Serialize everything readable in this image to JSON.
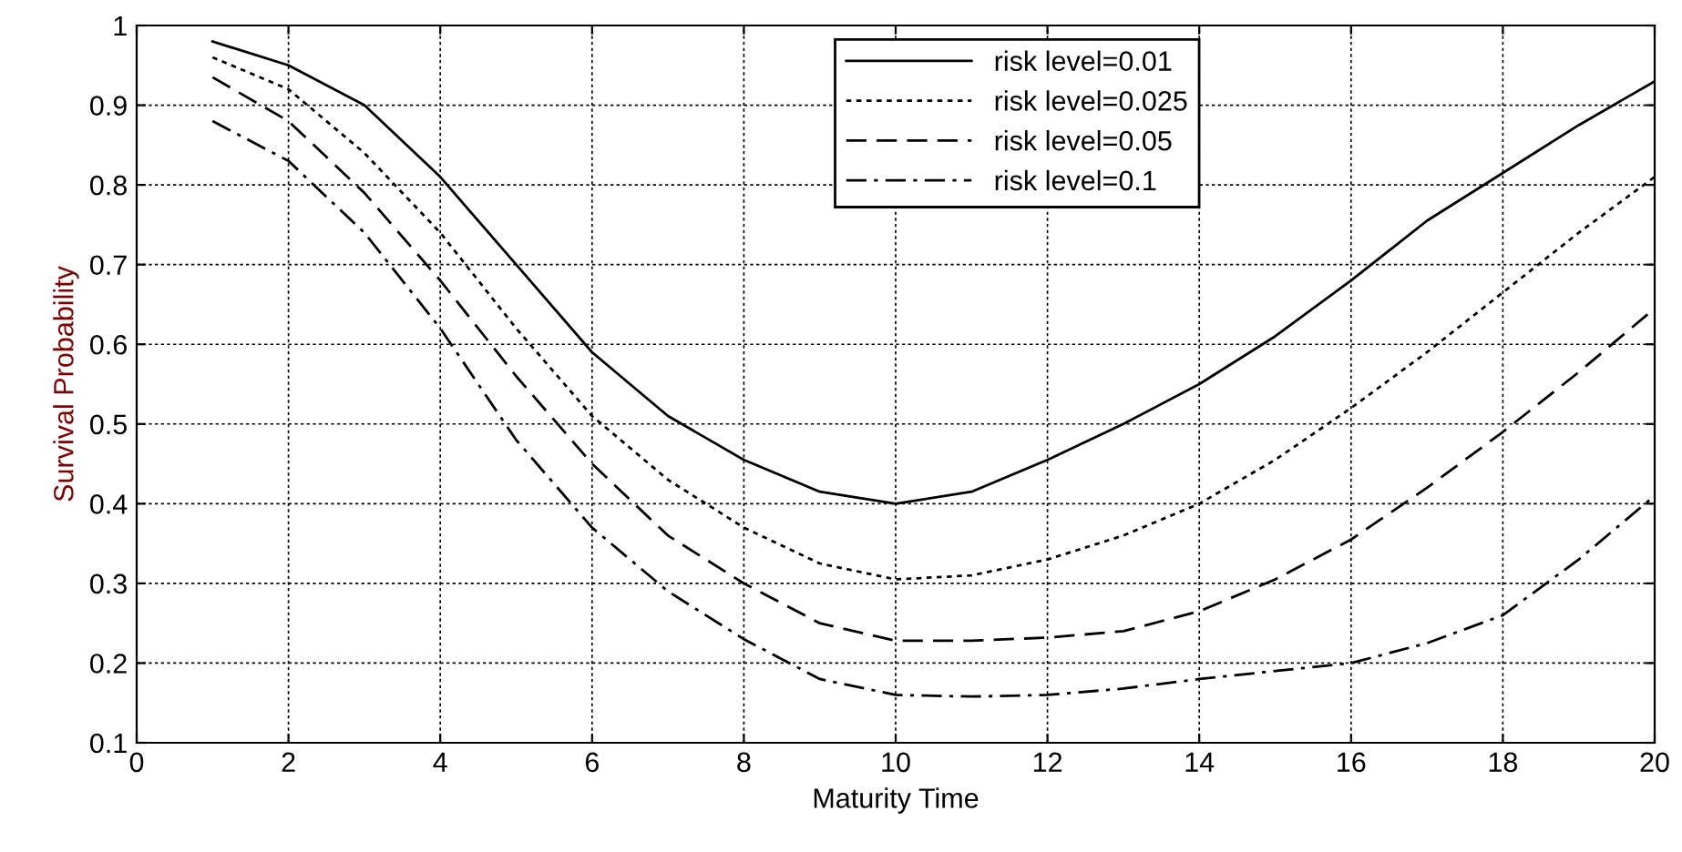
{
  "chart_data": {
    "type": "line",
    "xlabel": "Maturity Time",
    "ylabel": "Survival Probability",
    "x": [
      1,
      2,
      3,
      4,
      5,
      6,
      7,
      8,
      9,
      10,
      11,
      12,
      13,
      14,
      15,
      16,
      17,
      18,
      19,
      20
    ],
    "series": [
      {
        "name": "risk level=0.01",
        "color": "#000000",
        "line_style": "solid",
        "values": [
          0.98,
          0.95,
          0.9,
          0.81,
          0.7,
          0.59,
          0.51,
          0.455,
          0.415,
          0.4,
          0.415,
          0.455,
          0.5,
          0.55,
          0.61,
          0.68,
          0.755,
          0.815,
          0.875,
          0.93
        ]
      },
      {
        "name": "risk level=0.025",
        "color": "#000000",
        "line_style": "dotted",
        "values": [
          0.96,
          0.92,
          0.84,
          0.74,
          0.62,
          0.51,
          0.43,
          0.37,
          0.325,
          0.305,
          0.31,
          0.33,
          0.36,
          0.4,
          0.455,
          0.52,
          0.59,
          0.665,
          0.74,
          0.81
        ]
      },
      {
        "name": "risk level=0.05",
        "color": "#000000",
        "line_style": "dashed",
        "values": [
          0.935,
          0.88,
          0.79,
          0.68,
          0.56,
          0.45,
          0.36,
          0.3,
          0.25,
          0.228,
          0.228,
          0.232,
          0.24,
          0.265,
          0.305,
          0.355,
          0.42,
          0.49,
          0.565,
          0.645
        ]
      },
      {
        "name": "risk level=0.1",
        "color": "#000000",
        "line_style": "dashdot",
        "values": [
          0.88,
          0.83,
          0.74,
          0.62,
          0.48,
          0.37,
          0.29,
          0.23,
          0.18,
          0.16,
          0.158,
          0.16,
          0.168,
          0.18,
          0.19,
          0.2,
          0.225,
          0.26,
          0.33,
          0.41
        ]
      }
    ],
    "xlim": [
      0,
      20
    ],
    "xticks": [
      0,
      2,
      4,
      6,
      8,
      10,
      12,
      14,
      16,
      18,
      20
    ],
    "ylim": [
      0.1,
      1
    ],
    "yticks": [
      0.1,
      0.2,
      0.3,
      0.4,
      0.5,
      0.6,
      0.7,
      0.8,
      0.9,
      1
    ],
    "grid": true,
    "legend": "top",
    "marker": "none"
  }
}
